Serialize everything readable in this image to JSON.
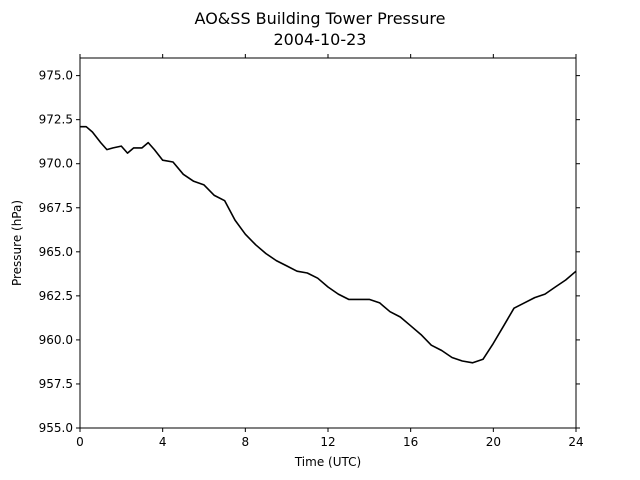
{
  "chart_data": {
    "type": "line",
    "title": "AO&SS Building Tower Pressure",
    "subtitle": "2004-10-23",
    "xlabel": "Time (UTC)",
    "ylabel": "Pressure (hPa)",
    "xlim": [
      0,
      24
    ],
    "ylim": [
      955.0,
      976.0
    ],
    "xticks": [
      0,
      4,
      8,
      12,
      16,
      20,
      24
    ],
    "xtick_labels": [
      "0",
      "4",
      "8",
      "12",
      "16",
      "20",
      "24"
    ],
    "yticks": [
      955.0,
      957.5,
      960.0,
      962.5,
      965.0,
      967.5,
      970.0,
      972.5,
      975.0
    ],
    "ytick_labels": [
      "955.0",
      "957.5",
      "960.0",
      "962.5",
      "965.0",
      "967.5",
      "970.0",
      "972.5",
      "975.0"
    ],
    "grid": false,
    "legend": "none",
    "line_color": "#000000",
    "series": [
      {
        "x": [
          0,
          0.3,
          0.6,
          1.0,
          1.3,
          1.6,
          2.0,
          2.3,
          2.6,
          3.0,
          3.3,
          3.6,
          4.0,
          4.5,
          5.0,
          5.5,
          6.0,
          6.5,
          7.0,
          7.5,
          8.0,
          8.5,
          9.0,
          9.5,
          10.0,
          10.5,
          11.0,
          11.5,
          12.0,
          12.5,
          13.0,
          13.5,
          14.0,
          14.5,
          15.0,
          15.5,
          16.0,
          16.5,
          17.0,
          17.5,
          18.0,
          18.5,
          19.0,
          19.5,
          20.0,
          20.5,
          21.0,
          21.5,
          22.0,
          22.5,
          23.0,
          23.5,
          24.0
        ],
        "y": [
          972.1,
          972.1,
          971.8,
          971.2,
          970.8,
          970.9,
          971.0,
          970.6,
          970.9,
          970.9,
          971.2,
          970.8,
          970.2,
          970.1,
          969.4,
          969.0,
          968.8,
          968.2,
          967.9,
          966.8,
          966.0,
          965.4,
          964.9,
          964.5,
          964.2,
          963.9,
          963.8,
          963.5,
          963.0,
          962.6,
          962.3,
          962.3,
          962.3,
          962.1,
          961.6,
          961.3,
          960.8,
          960.3,
          959.7,
          959.4,
          959.0,
          958.8,
          958.7,
          958.9,
          959.8,
          960.8,
          961.8,
          962.1,
          962.4,
          962.6,
          963.0,
          963.4,
          963.9
        ]
      }
    ]
  }
}
